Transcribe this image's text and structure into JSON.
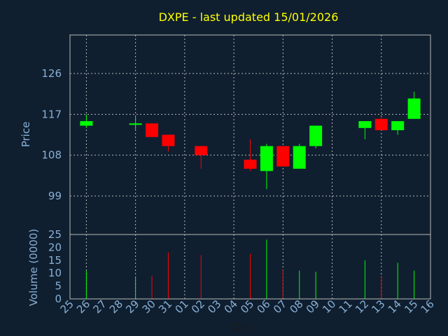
{
  "chart_data": {
    "type": "candlestick",
    "title": "DXPE - last updated 15/01/2026",
    "ylabel": "Price",
    "volume_label": "Volume (0000)",
    "xlabel": "Day",
    "x_tick_labels": [
      "25",
      "26",
      "27",
      "28",
      "29",
      "30",
      "31",
      "01",
      "02",
      "03",
      "04",
      "05",
      "06",
      "07",
      "08",
      "09",
      "10",
      "11",
      "12",
      "13",
      "14",
      "15",
      "16"
    ],
    "price_ticks": [
      99,
      108,
      117,
      126
    ],
    "price_ylim": [
      90.5,
      134.5
    ],
    "volume_ticks": [
      0,
      5,
      10,
      15,
      20,
      25
    ],
    "volume_ylim": [
      0,
      25
    ],
    "colors": {
      "up": "#00ff00",
      "down": "#ff0000",
      "background": "#0f1f30",
      "title": "#ffff00",
      "axis_text": "#8ab0d4"
    },
    "candles": [
      {
        "day": "26",
        "open": 114.5,
        "high": 117.0,
        "low": 114.0,
        "close": 115.5,
        "volume": 11
      },
      {
        "day": "29",
        "open": 114.8,
        "high": 116.5,
        "low": 113.5,
        "close": 115.0,
        "volume": 8.5
      },
      {
        "day": "30",
        "open": 115.0,
        "high": 115.0,
        "low": 112.0,
        "close": 112.0,
        "volume": 9
      },
      {
        "day": "31",
        "open": 112.5,
        "high": 112.5,
        "low": 108.8,
        "close": 110.0,
        "volume": 18
      },
      {
        "day": "02",
        "open": 110.0,
        "high": 110.0,
        "low": 105.0,
        "close": 108.0,
        "volume": 17
      },
      {
        "day": "05",
        "open": 107.0,
        "high": 111.5,
        "low": 104.5,
        "close": 105.0,
        "volume": 17.5
      },
      {
        "day": "06",
        "open": 104.5,
        "high": 110.5,
        "low": 100.5,
        "close": 110.0,
        "volume": 23
      },
      {
        "day": "07",
        "open": 110.0,
        "high": 110.0,
        "low": 105.5,
        "close": 105.5,
        "volume": 11.5
      },
      {
        "day": "08",
        "open": 105.0,
        "high": 110.5,
        "low": 105.0,
        "close": 110.0,
        "volume": 11
      },
      {
        "day": "09",
        "open": 110.0,
        "high": 114.5,
        "low": 109.5,
        "close": 114.5,
        "volume": 10.5
      },
      {
        "day": "12",
        "open": 114.0,
        "high": 115.5,
        "low": 111.5,
        "close": 115.5,
        "volume": 15
      },
      {
        "day": "13",
        "open": 116.0,
        "high": 116.5,
        "low": 113.5,
        "close": 113.5,
        "volume": 9
      },
      {
        "day": "14",
        "open": 113.5,
        "high": 115.5,
        "low": 112.5,
        "close": 115.5,
        "volume": 14
      },
      {
        "day": "15",
        "open": 116.0,
        "high": 122.0,
        "low": 116.0,
        "close": 120.5,
        "volume": 11
      }
    ]
  }
}
